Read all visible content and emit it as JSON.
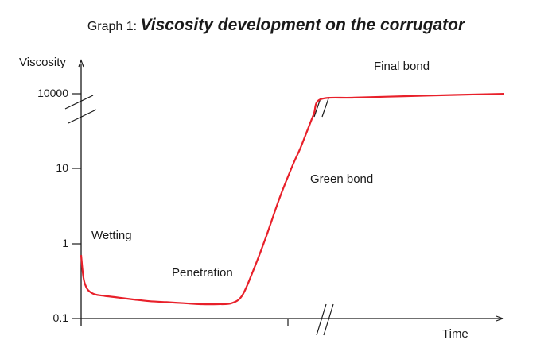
{
  "chart_data": {
    "type": "line",
    "title_prefix": "Graph 1:",
    "title": "Viscosity development on the corrugator",
    "ylabel": "Viscosity",
    "xlabel": "Time",
    "y_scale": "log",
    "y_ticks": [
      {
        "value": 0.1,
        "label": "0.1"
      },
      {
        "value": 1,
        "label": "1"
      },
      {
        "value": 10,
        "label": "10"
      },
      {
        "value": 10000,
        "label": "10000"
      }
    ],
    "y_axis_break": "between 10 and 10000",
    "x_axis_break": "after the steep rise",
    "x_ticks": [],
    "series": [
      {
        "name": "Viscosity",
        "color": "#e8202a",
        "x": [
          0,
          0.5,
          1,
          2,
          4,
          7,
          11,
          15,
          20,
          25,
          30,
          35,
          40,
          44,
          47,
          50,
          54,
          58,
          62,
          64,
          66,
          68,
          70,
          80,
          95,
          110,
          125
        ],
        "y": [
          0.7,
          0.4,
          0.3,
          0.24,
          0.21,
          0.2,
          0.19,
          0.18,
          0.17,
          0.165,
          0.16,
          0.155,
          0.155,
          0.16,
          0.2,
          0.4,
          1.2,
          4,
          15,
          60,
          300,
          1500,
          6000,
          7000,
          8000,
          9000,
          10000
        ]
      }
    ],
    "annotations": [
      {
        "text": "Wetting",
        "phase": 1
      },
      {
        "text": "Penetration",
        "phase": 2
      },
      {
        "text": "Green bond",
        "phase": 3
      },
      {
        "text": "Final bond",
        "phase": 4
      }
    ],
    "grid": false
  }
}
